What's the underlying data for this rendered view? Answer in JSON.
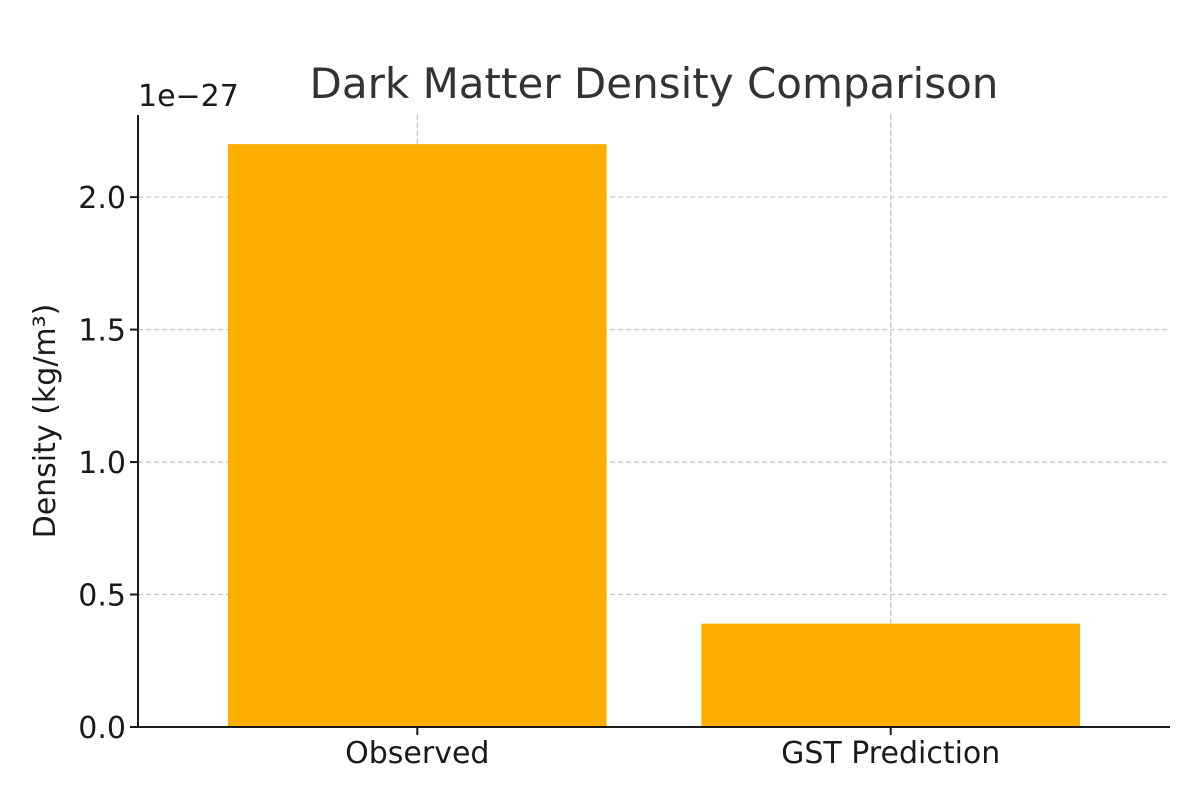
{
  "chart_data": {
    "type": "bar",
    "title": "Dark Matter Density Comparison",
    "xlabel": "",
    "ylabel": "Density (kg/m³)",
    "offset_label": "1e−27",
    "scale_exponent": -27,
    "categories": [
      "Observed",
      "GST Prediction"
    ],
    "values": [
      2.2e-27,
      3.9e-28
    ],
    "ylim": [
      0,
      2.31e-27
    ],
    "yticks": [
      0.0,
      0.5,
      1.0,
      1.5,
      2.0
    ],
    "ytick_labels": [
      "0.0",
      "0.5",
      "1.0",
      "1.5",
      "2.0"
    ],
    "bar_color": "#FFAE00",
    "grid": true,
    "legend": false
  }
}
